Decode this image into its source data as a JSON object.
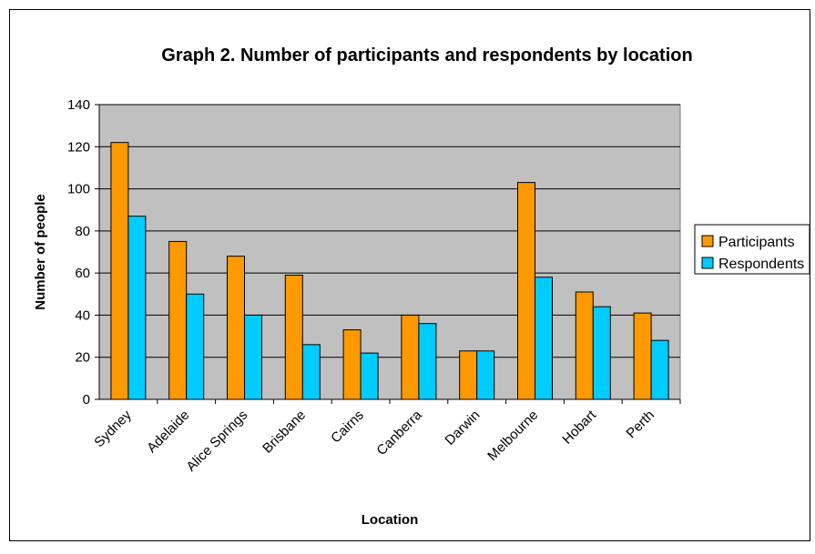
{
  "chart_data": {
    "type": "bar",
    "title": "Graph 2. Number of participants and respondents by location",
    "xlabel": "Location",
    "ylabel": "Number of people",
    "categories": [
      "Sydney",
      "Adelaide",
      "Alice Springs",
      "Brisbane",
      "Cairns",
      "Canberra",
      "Darwin",
      "Melbourne",
      "Hobart",
      "Perth"
    ],
    "series": [
      {
        "name": "Participants",
        "color": "#ff9900",
        "values": [
          122,
          75,
          68,
          59,
          33,
          40,
          23,
          103,
          51,
          41
        ]
      },
      {
        "name": "Respondents",
        "color": "#00ccff",
        "values": [
          87,
          50,
          40,
          26,
          22,
          36,
          23,
          58,
          44,
          28
        ]
      }
    ],
    "ylim": [
      0,
      140
    ],
    "yticks": [
      0,
      20,
      40,
      60,
      80,
      100,
      120,
      140
    ],
    "grid": true,
    "plot_background": "#c0c0c0",
    "legend_position": "right"
  }
}
